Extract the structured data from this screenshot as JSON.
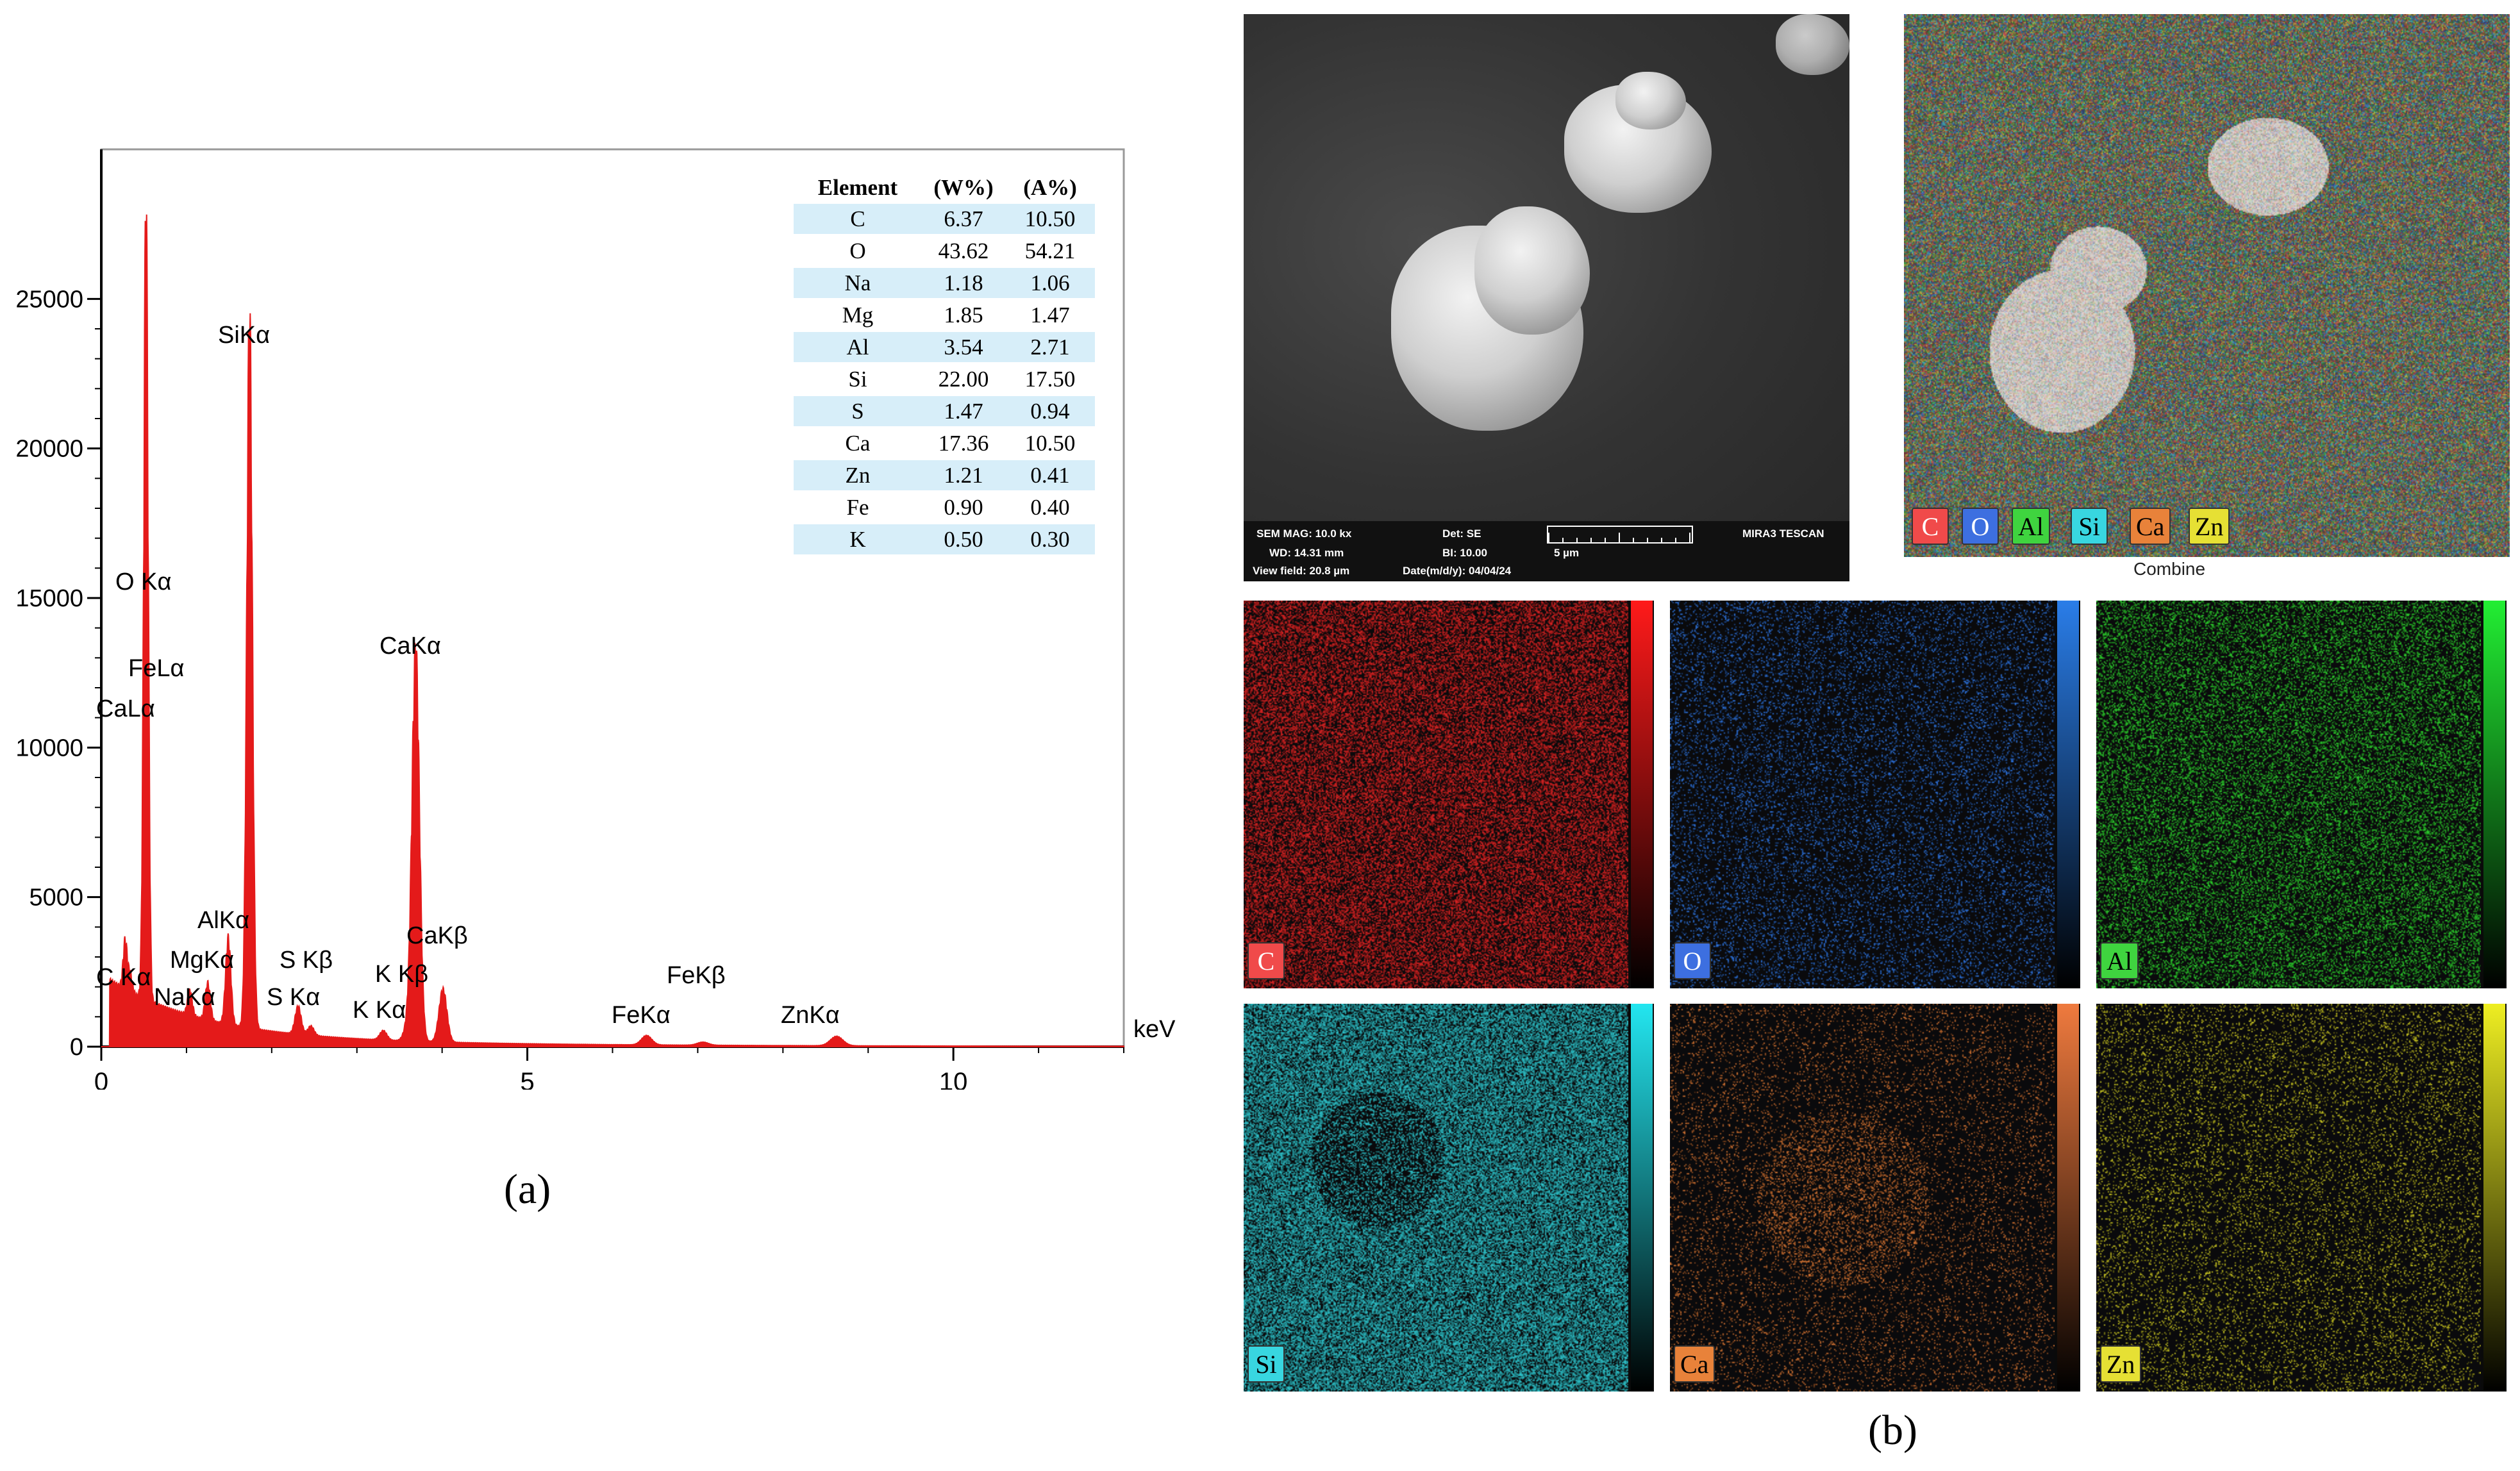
{
  "panel_a": {
    "caption": "(a)",
    "unit": "keV",
    "y_ticks": [
      "0",
      "5000",
      "10000",
      "15000",
      "20000",
      "25000"
    ],
    "x_ticks": [
      "0",
      "5",
      "10"
    ],
    "peak_labels": [
      "SiKα",
      "O Kα",
      "FeLα",
      "CaLα",
      "CaKα",
      "AlKα",
      "MgKα",
      "NaKα",
      "C Kα",
      "S Kβ",
      "S Kα",
      "K Kβ",
      "K Kα",
      "CaKβ",
      "FeKβ",
      "FeKα",
      "ZnKα"
    ],
    "table": {
      "headers": [
        "Element",
        "(W%)",
        "(A%)"
      ],
      "rows": [
        [
          "C",
          "6.37",
          "10.50"
        ],
        [
          "O",
          "43.62",
          "54.21"
        ],
        [
          "Na",
          "1.18",
          "1.06"
        ],
        [
          "Mg",
          "1.85",
          "1.47"
        ],
        [
          "Al",
          "3.54",
          "2.71"
        ],
        [
          "Si",
          "22.00",
          "17.50"
        ],
        [
          "S",
          "1.47",
          "0.94"
        ],
        [
          "Ca",
          "17.36",
          "10.50"
        ],
        [
          "Zn",
          "1.21",
          "0.41"
        ],
        [
          "Fe",
          "0.90",
          "0.40"
        ],
        [
          "K",
          "0.50",
          "0.30"
        ]
      ]
    }
  },
  "chart_data": {
    "type": "line",
    "xlabel": "keV",
    "ylabel": "",
    "xlim": [
      0,
      12
    ],
    "ylim": [
      0,
      30000
    ],
    "grid": false,
    "peaks": [
      {
        "label": "C Kα",
        "x": 0.28,
        "y": 1600
      },
      {
        "label": "O Kα",
        "x": 0.52,
        "y": 14800
      },
      {
        "label": "FeLα",
        "x": 0.53,
        "y": 11600
      },
      {
        "label": "CaLα",
        "x": 0.34,
        "y": 600
      },
      {
        "label": "NaKα",
        "x": 1.04,
        "y": 800
      },
      {
        "label": "MgKα",
        "x": 1.25,
        "y": 1200
      },
      {
        "label": "AlKα",
        "x": 1.49,
        "y": 2800
      },
      {
        "label": "SiKα",
        "x": 1.74,
        "y": 23000
      },
      {
        "label": "S Kα",
        "x": 2.31,
        "y": 900
      },
      {
        "label": "S Kβ",
        "x": 2.46,
        "y": 300
      },
      {
        "label": "K Kα",
        "x": 3.31,
        "y": 300
      },
      {
        "label": "K Kβ",
        "x": 3.59,
        "y": 400
      },
      {
        "label": "CaKα",
        "x": 3.69,
        "y": 12600
      },
      {
        "label": "CaKβ",
        "x": 4.01,
        "y": 1700
      },
      {
        "label": "FeKα",
        "x": 6.4,
        "y": 300
      },
      {
        "label": "FeKβ",
        "x": 7.06,
        "y": 100
      },
      {
        "label": "ZnKα",
        "x": 8.63,
        "y": 300
      }
    ]
  },
  "panel_b": {
    "caption": "(b)",
    "sem_info": {
      "mag": "SEM MAG: 10.0 kx",
      "det": "Det: SE",
      "brand": "MIRA3 TESCAN",
      "wd": "WD: 14.31 mm",
      "bi": "BI: 10.00",
      "scale": "5 µm",
      "view_field": "View field: 20.8 µm",
      "date": "Date(m/d/y): 04/04/24"
    },
    "combine_label": "Combine",
    "combine_chips": [
      {
        "el": "C",
        "bg": "#f04a4a",
        "fg": "#ffffff"
      },
      {
        "el": "O",
        "bg": "#3d6fe0",
        "fg": "#ffffff"
      },
      {
        "el": "Al",
        "bg": "#3fd43f",
        "fg": "#000000"
      },
      {
        "el": "Si",
        "bg": "#38d6e0",
        "fg": "#000000"
      },
      {
        "el": "Ca",
        "bg": "#e8823a",
        "fg": "#000000"
      },
      {
        "el": "Zn",
        "bg": "#e6e034",
        "fg": "#000000"
      }
    ],
    "maps": [
      {
        "el": "C",
        "dot": "#e02424",
        "bar_top": "#ff1a1a",
        "chip_bg": "#f04a4a",
        "chip_fg": "#ffffff"
      },
      {
        "el": "O",
        "dot": "#2f78e8",
        "bar_top": "#2a7de8",
        "chip_bg": "#3d6fe0",
        "chip_fg": "#ffffff"
      },
      {
        "el": "Al",
        "dot": "#2ed42e",
        "bar_top": "#22ee33",
        "chip_bg": "#3fd43f",
        "chip_fg": "#000000"
      },
      {
        "el": "Si",
        "dot": "#2fc7cf",
        "bar_top": "#23e6f0",
        "chip_bg": "#38d6e0",
        "chip_fg": "#000000"
      },
      {
        "el": "Ca",
        "dot": "#e07a35",
        "bar_top": "#ef7a3e",
        "chip_bg": "#e8823a",
        "chip_fg": "#000000"
      },
      {
        "el": "Zn",
        "dot": "#d6d224",
        "bar_top": "#eeee22",
        "chip_bg": "#e6e034",
        "chip_fg": "#000000"
      }
    ]
  }
}
